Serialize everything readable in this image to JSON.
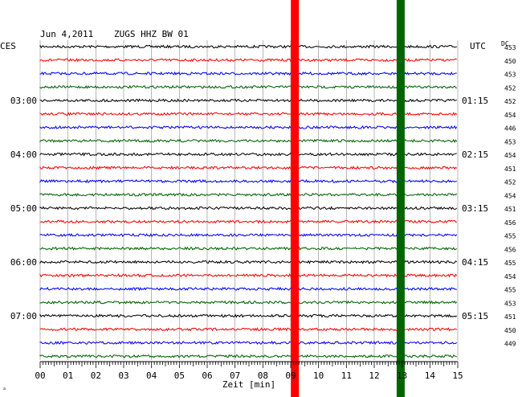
{
  "header": {
    "date": "Jun 4,2011",
    "station": "ZUGS HHZ BW 01",
    "left_tz": "CES",
    "right_tz": "UTC",
    "dc_label": "DC"
  },
  "chart_data": {
    "type": "line",
    "title": "Jun 4,2011   ZUGS HHZ BW 01",
    "xlabel": "Zeit [min]",
    "xlim": [
      0,
      15
    ],
    "x_ticks": [
      "00",
      "01",
      "02",
      "03",
      "04",
      "05",
      "06",
      "07",
      "08",
      "09",
      "10",
      "11",
      "12",
      "13",
      "14",
      "15"
    ],
    "trace_colors": [
      "#000000",
      "#ff0000",
      "#0000ff",
      "#006400"
    ],
    "trace_count": 24,
    "left_time_labels": [
      {
        "trace": 4,
        "text": "03:00"
      },
      {
        "trace": 8,
        "text": "04:00"
      },
      {
        "trace": 12,
        "text": "05:00"
      },
      {
        "trace": 16,
        "text": "06:00"
      },
      {
        "trace": 20,
        "text": "07:00"
      }
    ],
    "right_time_labels": [
      {
        "trace": 4,
        "text": "01:15"
      },
      {
        "trace": 8,
        "text": "02:15"
      },
      {
        "trace": 12,
        "text": "03:15"
      },
      {
        "trace": 16,
        "text": "04:15"
      },
      {
        "trace": 20,
        "text": "05:15"
      }
    ],
    "dc_offsets": [
      "453",
      "450",
      "453",
      "452",
      "452",
      "454",
      "446",
      "453",
      "454",
      "451",
      "452",
      "454",
      "451",
      "456",
      "455",
      "456",
      "455",
      "454",
      "455",
      "453",
      "451",
      "450",
      "449"
    ],
    "events": [
      {
        "minute": 9.15,
        "color": "#ff0000",
        "note": "red marker"
      },
      {
        "minute": 12.95,
        "color": "#006400",
        "note": "green marker"
      }
    ],
    "grid": true
  },
  "footer": {
    "corner_mark": "ₐ"
  }
}
